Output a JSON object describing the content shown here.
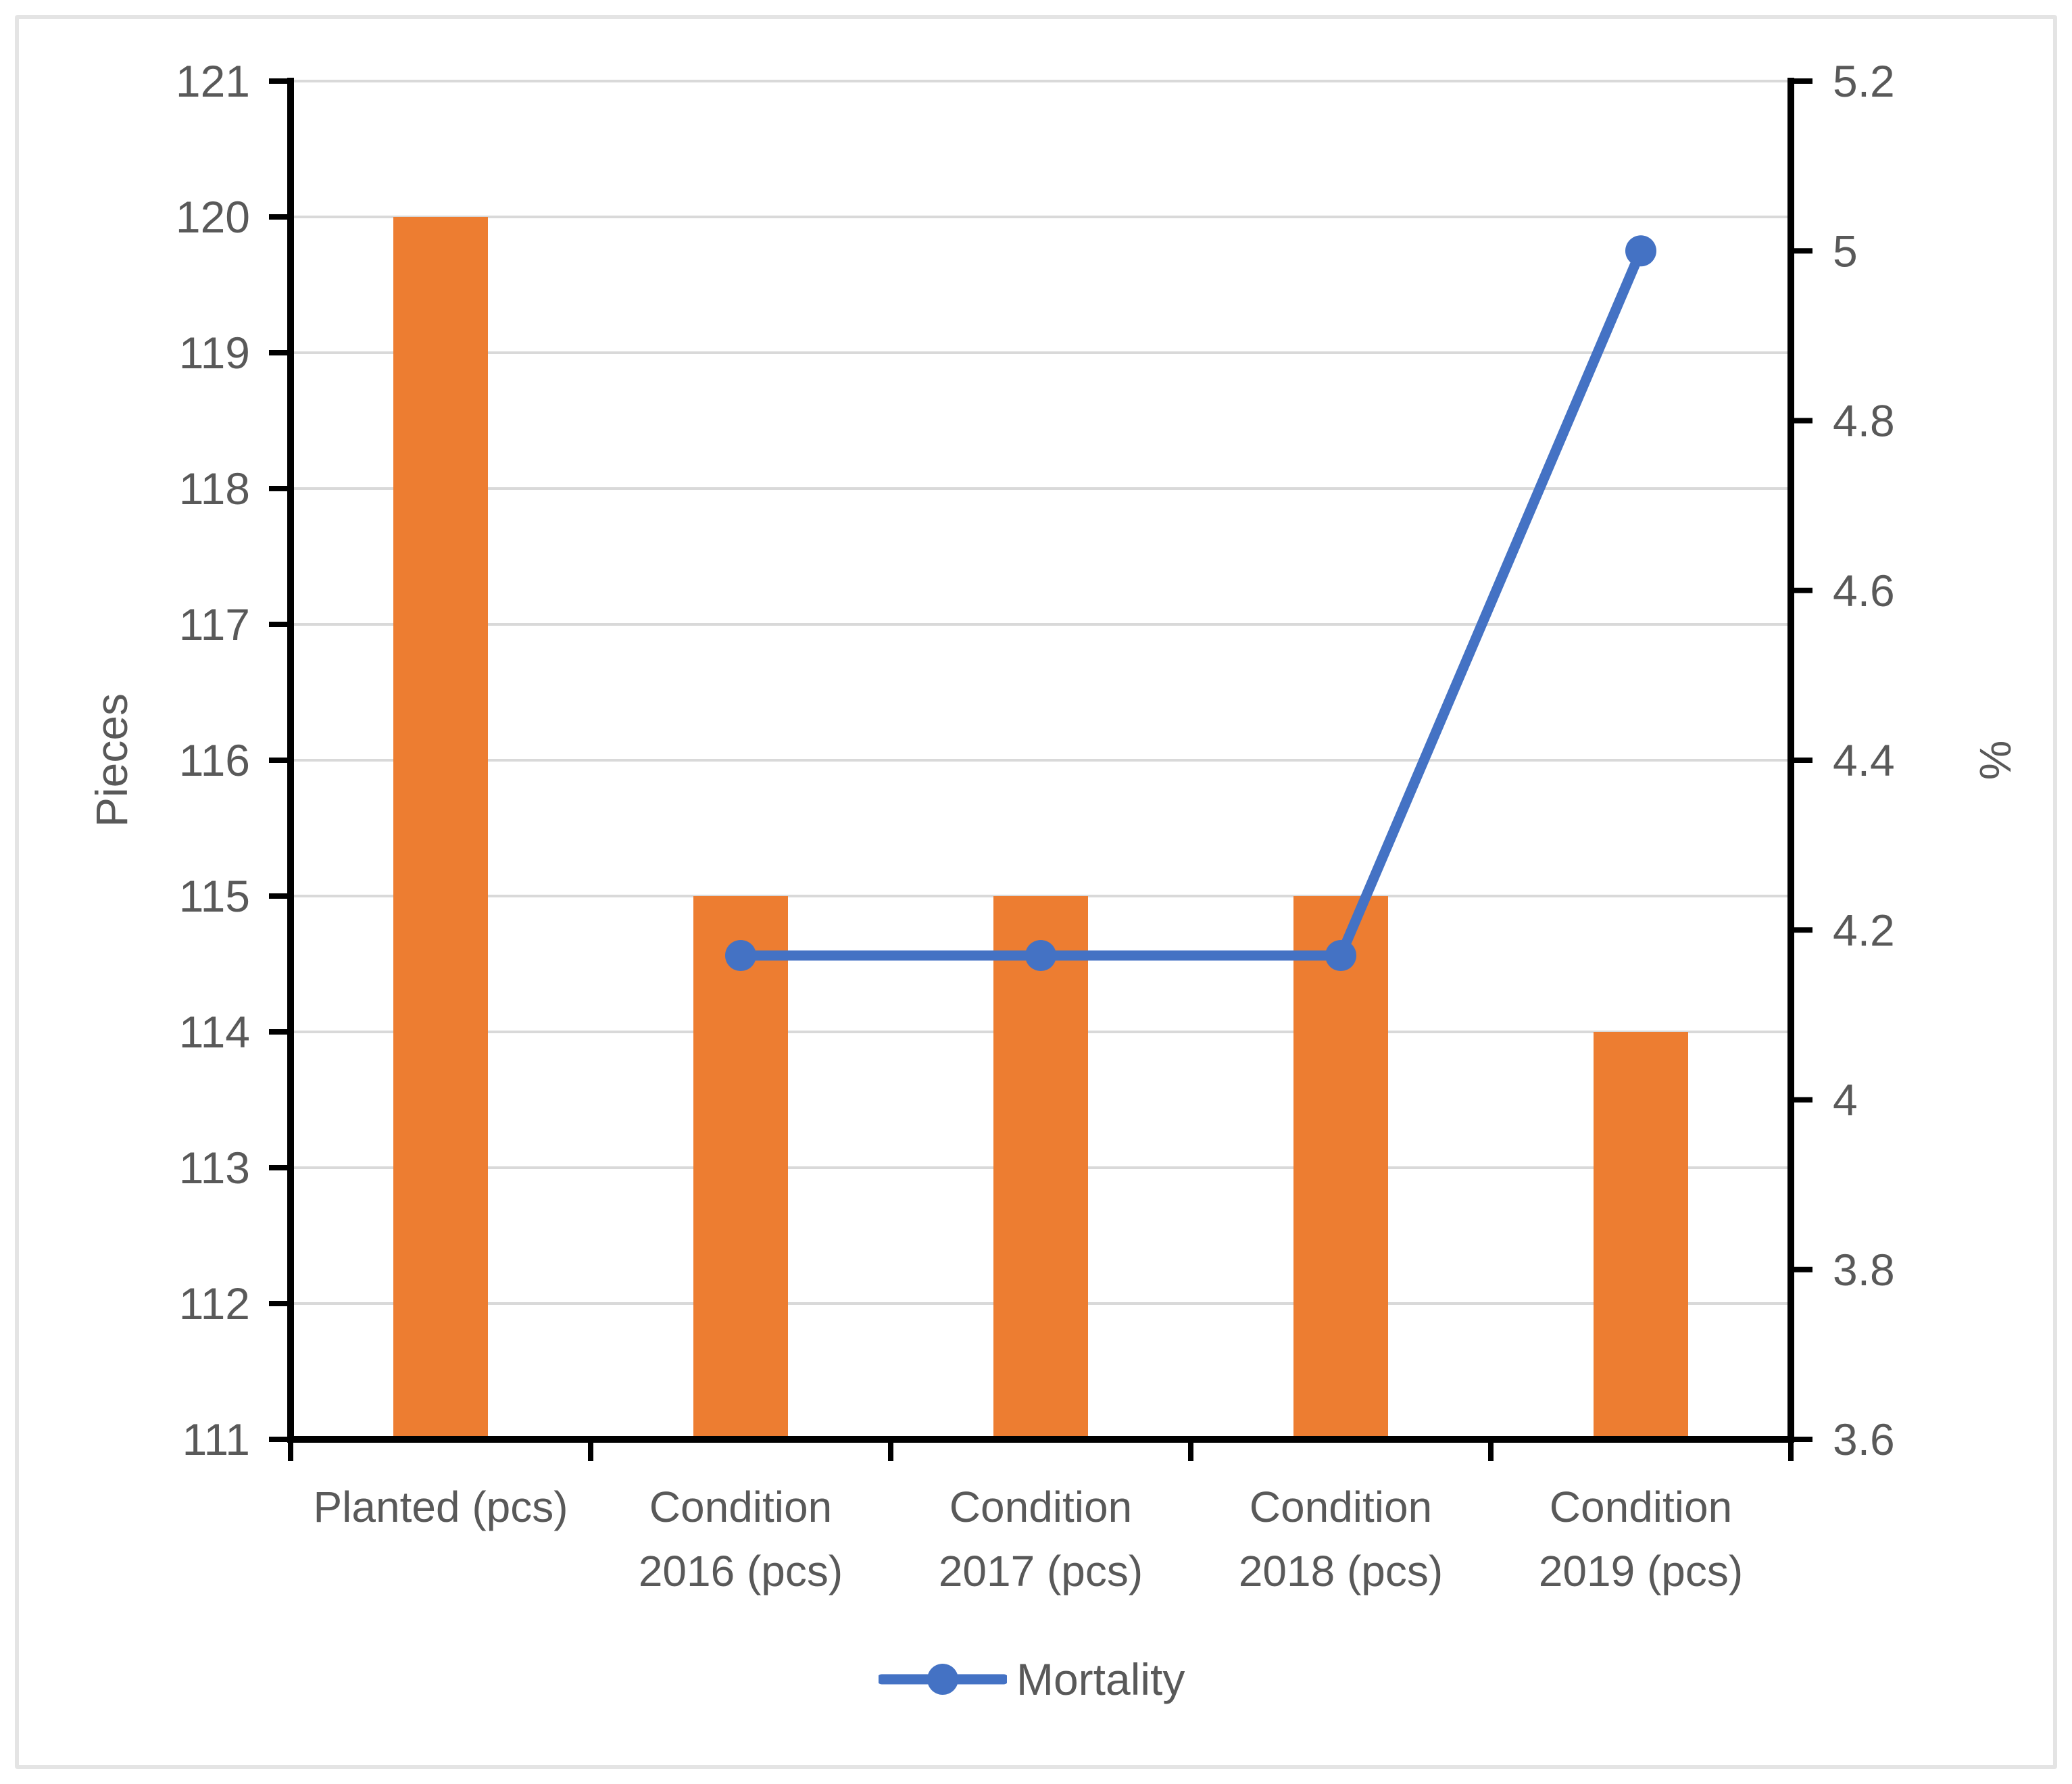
{
  "chart_data": {
    "type": "combo",
    "categories": [
      "Planted (pcs)",
      "Condition 2016 (pcs)",
      "Condition 2017 (pcs)",
      "Condition 2018 (pcs)",
      "Condition 2019 (pcs)"
    ],
    "category_label_lines": [
      [
        "Planted (pcs)"
      ],
      [
        "Condition",
        "2016 (pcs)"
      ],
      [
        "Condition",
        "2017 (pcs)"
      ],
      [
        "Condition",
        "2018 (pcs)"
      ],
      [
        "Condition",
        "2019 (pcs)"
      ]
    ],
    "series": [
      {
        "name": "Pieces",
        "type": "bar",
        "axis": "left",
        "color": "#ED7D31",
        "values": [
          120,
          115,
          115,
          115,
          114
        ]
      },
      {
        "name": "Mortality",
        "type": "line",
        "axis": "right",
        "color": "#4472C4",
        "values": [
          null,
          4.17,
          4.17,
          4.17,
          5.0
        ]
      }
    ],
    "left_axis": {
      "title": "Pieces",
      "min": 111,
      "max": 121,
      "interval": 1,
      "tick_labels": [
        "111",
        "112",
        "113",
        "114",
        "115",
        "116",
        "117",
        "118",
        "119",
        "120",
        "121"
      ]
    },
    "right_axis": {
      "title": "%",
      "min": 3.6,
      "max": 5.2,
      "interval": 0.2,
      "tick_labels": [
        "3.6",
        "3.8",
        "4",
        "4.2",
        "4.4",
        "4.6",
        "4.8",
        "5",
        "5.2"
      ]
    },
    "legend": {
      "label": "Mortality",
      "position": "bottom"
    },
    "grid": true,
    "title": "",
    "colors": {
      "bar": "#ED7D31",
      "line": "#4472C4",
      "axis": "#000000",
      "gridline": "#D9D9D9",
      "text": "#595959",
      "figure_border": "#E4E4E4"
    }
  }
}
